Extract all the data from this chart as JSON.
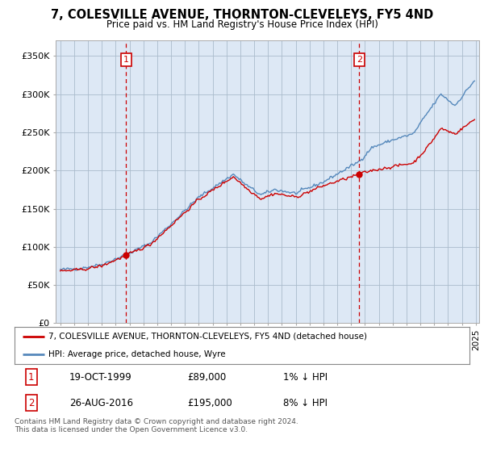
{
  "title": "7, COLESVILLE AVENUE, THORNTON-CLEVELEYS, FY5 4ND",
  "subtitle": "Price paid vs. HM Land Registry's House Price Index (HPI)",
  "sale1_price": 89000,
  "sale1_label": "1",
  "sale2_price": 195000,
  "sale2_label": "2",
  "legend_line1": "7, COLESVILLE AVENUE, THORNTON-CLEVELEYS, FY5 4ND (detached house)",
  "legend_line2": "HPI: Average price, detached house, Wyre",
  "table_row1": [
    "1",
    "19-OCT-1999",
    "£89,000",
    "1% ↓ HPI"
  ],
  "table_row2": [
    "2",
    "26-AUG-2016",
    "£195,000",
    "8% ↓ HPI"
  ],
  "footer": "Contains HM Land Registry data © Crown copyright and database right 2024.\nThis data is licensed under the Open Government Licence v3.0.",
  "hpi_color": "#5588bb",
  "price_color": "#cc0000",
  "vline_color": "#cc0000",
  "bg_chart": "#dde8f5",
  "background_color": "#ffffff",
  "grid_color": "#aabbcc",
  "ylim_min": 0,
  "ylim_max": 370000,
  "yticks": [
    0,
    50000,
    100000,
    150000,
    200000,
    250000,
    300000,
    350000
  ]
}
